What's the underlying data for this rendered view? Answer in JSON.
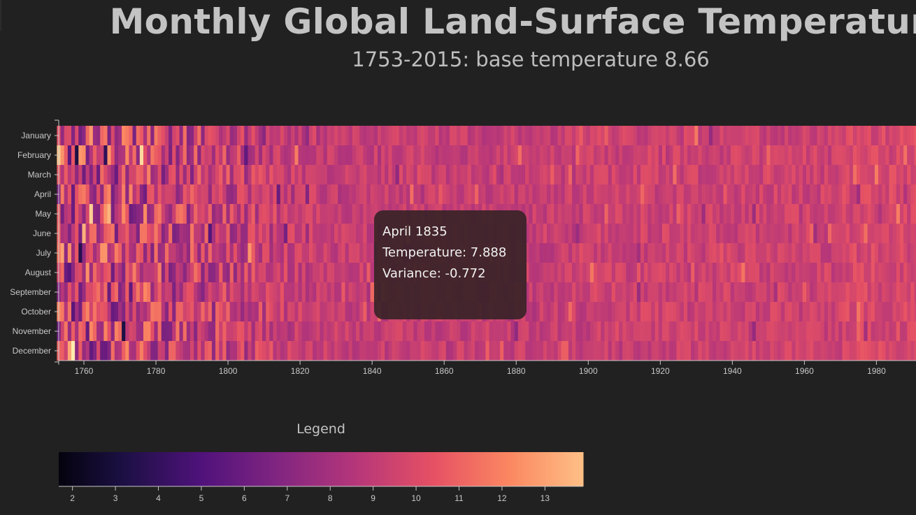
{
  "header": {
    "title": "Monthly Global Land-Surface Temperature",
    "subtitle": "1753-2015: base temperature 8.66"
  },
  "tooltip": {
    "line1": "April 1835",
    "line2": "Temperature: 7.888",
    "line3": "Variance: -0.772"
  },
  "legend": {
    "title": "Legend",
    "ticks": [
      "2",
      "3",
      "4",
      "5",
      "6",
      "7",
      "8",
      "9",
      "10",
      "11",
      "12",
      "13"
    ],
    "domain": [
      1.68,
      13.89
    ]
  },
  "colors": {
    "background": "#212121",
    "colormap": "magma",
    "stops": [
      "#000004",
      "#1c1044",
      "#4f127b",
      "#812581",
      "#b5367a",
      "#e55064",
      "#fb8761",
      "#fec287",
      "#fcfdbf"
    ]
  },
  "chart_data": {
    "type": "heatmap",
    "title": "Monthly Global Land-Surface Temperature",
    "subtitle": "1753-2015: base temperature 8.66",
    "base_temperature": 8.66,
    "x_range": [
      1753,
      2015
    ],
    "x_ticks": [
      "1760",
      "1780",
      "1800",
      "1820",
      "1840",
      "1860",
      "1880",
      "1900",
      "1920",
      "1940",
      "1960",
      "1980"
    ],
    "y_categories": [
      "January",
      "February",
      "March",
      "April",
      "May",
      "June",
      "July",
      "August",
      "September",
      "October",
      "November",
      "December"
    ],
    "value_range": [
      1.68,
      13.89
    ],
    "highlighted_cell": {
      "year": 1835,
      "month": "April",
      "temperature": 7.888,
      "variance": -0.772
    }
  }
}
